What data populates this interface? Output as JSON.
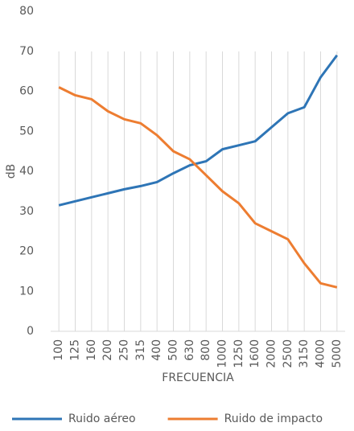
{
  "chart_data": {
    "type": "line",
    "categories": [
      "100",
      "125",
      "160",
      "200",
      "250",
      "315",
      "400",
      "500",
      "630",
      "800",
      "1000",
      "1250",
      "1600",
      "2000",
      "2500",
      "3150",
      "4000",
      "5000"
    ],
    "series": [
      {
        "name": "Ruido aéreo",
        "color": "#2e75b6",
        "values": [
          31.5,
          32.5,
          33.5,
          34.5,
          35.5,
          36.3,
          37.3,
          39.5,
          41.5,
          42.5,
          45.5,
          46.5,
          47.5,
          51,
          54.5,
          56,
          63.5,
          69
        ]
      },
      {
        "name": "Ruido de impacto",
        "color": "#ed7d31",
        "values": [
          61,
          59,
          58,
          55,
          53,
          52,
          49,
          45,
          43,
          39,
          35,
          32,
          27,
          25,
          23,
          17,
          12,
          11
        ]
      }
    ],
    "y_label": "dB",
    "x_label": "FRECUENCIA",
    "ylim": [
      0,
      80
    ],
    "yticks": [
      0,
      10,
      20,
      30,
      40,
      50,
      60,
      70,
      80
    ],
    "grid": true,
    "legend": "bottom"
  }
}
